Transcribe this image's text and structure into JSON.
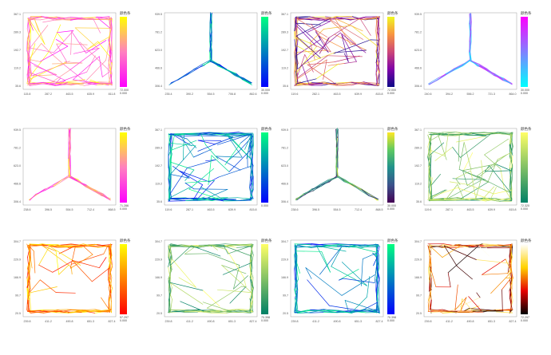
{
  "chart_data": [
    {
      "type": "trajectory",
      "shape": "open-field",
      "colormap": "spring",
      "colorbar_title": "颜色条",
      "colorbar_max": "72.000",
      "colorbar_min": "0.000",
      "x_ticks": [
        "115.8",
        "287.2",
        "463.5",
        "635.9",
        "811.8"
      ],
      "y_ticks": [
        "367.1",
        "289.3",
        "192.7",
        "119.2",
        "35.6"
      ]
    },
    {
      "type": "trajectory",
      "shape": "y-maze",
      "colormap": "winter",
      "colorbar_title": "颜色条",
      "colorbar_max": "30.000",
      "colorbar_min": "0.000",
      "x_ticks": [
        "235.4",
        "390.2",
        "554.5",
        "706.8",
        "862.6"
      ],
      "y_ticks": [
        "939.5",
        "781.2",
        "623.0",
        "466.6",
        "306.4"
      ]
    },
    {
      "type": "trajectory",
      "shape": "open-field",
      "colormap": "plasma",
      "colorbar_title": "颜色条",
      "colorbar_max": "72.000",
      "colorbar_min": "0.000",
      "x_ticks": [
        "119.6",
        "282.1",
        "463.5",
        "639.9",
        "815.8"
      ],
      "y_ticks": [
        "367.1",
        "289.3",
        "192.7",
        "119.2",
        "35.6"
      ]
    },
    {
      "type": "trajectory",
      "shape": "y-maze",
      "colormap": "cool",
      "colorbar_title": "颜色条",
      "colorbar_max": "30.000",
      "colorbar_min": "0.000",
      "x_ticks": [
        "240.6",
        "394.2",
        "556.2",
        "721.3",
        "864.0"
      ],
      "y_ticks": [
        "939.5",
        "781.2",
        "623.0",
        "466.6",
        "306.4"
      ]
    },
    {
      "type": "trajectory",
      "shape": "y-maze",
      "colormap": "spring",
      "colorbar_title": "颜色条",
      "colorbar_max": "71.286",
      "colorbar_min": "0.000",
      "x_ticks": [
        "238.6",
        "396.5",
        "554.5",
        "712.4",
        "868.5"
      ],
      "y_ticks": [
        "939.5",
        "781.2",
        "623.0",
        "466.6",
        "306.4"
      ]
    },
    {
      "type": "trajectory",
      "shape": "open-field",
      "colormap": "winter",
      "colorbar_title": "颜色条",
      "colorbar_max": "",
      "colorbar_min": "0.000",
      "x_ticks": [
        "119.6",
        "287.1",
        "463.5",
        "639.9",
        "815.8"
      ],
      "y_ticks": [
        "367.1",
        "289.3",
        "192.7",
        "119.2",
        "35.6"
      ]
    },
    {
      "type": "trajectory",
      "shape": "y-maze",
      "colormap": "viridis",
      "colorbar_title": "颜色条",
      "colorbar_max": "30.000",
      "colorbar_min": "0.000",
      "x_ticks": [
        "238.6",
        "396.5",
        "554.5",
        "712.4",
        "868.5"
      ],
      "y_ticks": [
        "939.5",
        "781.2",
        "623.0",
        "466.6",
        "306.4"
      ]
    },
    {
      "type": "trajectory",
      "shape": "open-field",
      "colormap": "summer",
      "colorbar_title": "颜色条",
      "colorbar_max": "72.320",
      "colorbar_min": "0.000",
      "x_ticks": [
        "119.6",
        "287.1",
        "463.5",
        "639.9",
        "815.8"
      ],
      "y_ticks": [
        "367.1",
        "289.3",
        "192.7",
        "119.2",
        "35.6"
      ]
    },
    {
      "type": "trajectory",
      "shape": "open-field",
      "colormap": "autumn",
      "colorbar_title": "颜色条",
      "colorbar_max": "57.297",
      "colorbar_min": "0.000",
      "x_ticks": [
        "239.8",
        "411.2",
        "490.8",
        "651.3",
        "827.4"
      ],
      "y_ticks": [
        "304.7",
        "229.9",
        "166.9",
        "99.7",
        "20.5"
      ]
    },
    {
      "type": "trajectory",
      "shape": "open-field",
      "colormap": "summer",
      "colorbar_title": "颜色条",
      "colorbar_max": "70.398",
      "colorbar_min": "0.000",
      "x_ticks": [
        "239.8",
        "411.2",
        "490.8",
        "651.3",
        "827.4"
      ],
      "y_ticks": [
        "304.7",
        "229.9",
        "166.9",
        "99.7",
        "20.5"
      ]
    },
    {
      "type": "trajectory",
      "shape": "open-field",
      "colormap": "winter",
      "colorbar_title": "颜色条",
      "colorbar_max": "70.398",
      "colorbar_min": "0.000",
      "x_ticks": [
        "239.8",
        "411.2",
        "490.8",
        "651.3",
        "827.4"
      ],
      "y_ticks": [
        "304.7",
        "229.9",
        "166.9",
        "99.7",
        "20.5"
      ]
    },
    {
      "type": "trajectory",
      "shape": "open-field",
      "colormap": "hot",
      "colorbar_title": "颜色条",
      "colorbar_max": "72.297",
      "colorbar_min": "0.000",
      "x_ticks": [
        "239.8",
        "411.2",
        "490.8",
        "651.3",
        "827.4"
      ],
      "y_ticks": [
        "304.7",
        "229.9",
        "166.9",
        "99.7",
        "20.5"
      ]
    }
  ],
  "colormaps": {
    "spring": [
      "#ff00ff",
      "#ff80bf",
      "#ffff00"
    ],
    "winter": [
      "#0000ff",
      "#0080bf",
      "#00ff80"
    ],
    "plasma": [
      "#0d0887",
      "#7e03a8",
      "#cc4778",
      "#f89540",
      "#f0f921"
    ],
    "cool": [
      "#00ffff",
      "#8080ff",
      "#ff00ff"
    ],
    "viridis": [
      "#440154",
      "#3b528b",
      "#21918c",
      "#5ec962",
      "#fde725"
    ],
    "summer": [
      "#008066",
      "#80c066",
      "#ffff66"
    ],
    "autumn": [
      "#ff0000",
      "#ff8000",
      "#ffff00"
    ],
    "hot": [
      "#000000",
      "#e60000",
      "#ffd200",
      "#ffffff"
    ]
  }
}
